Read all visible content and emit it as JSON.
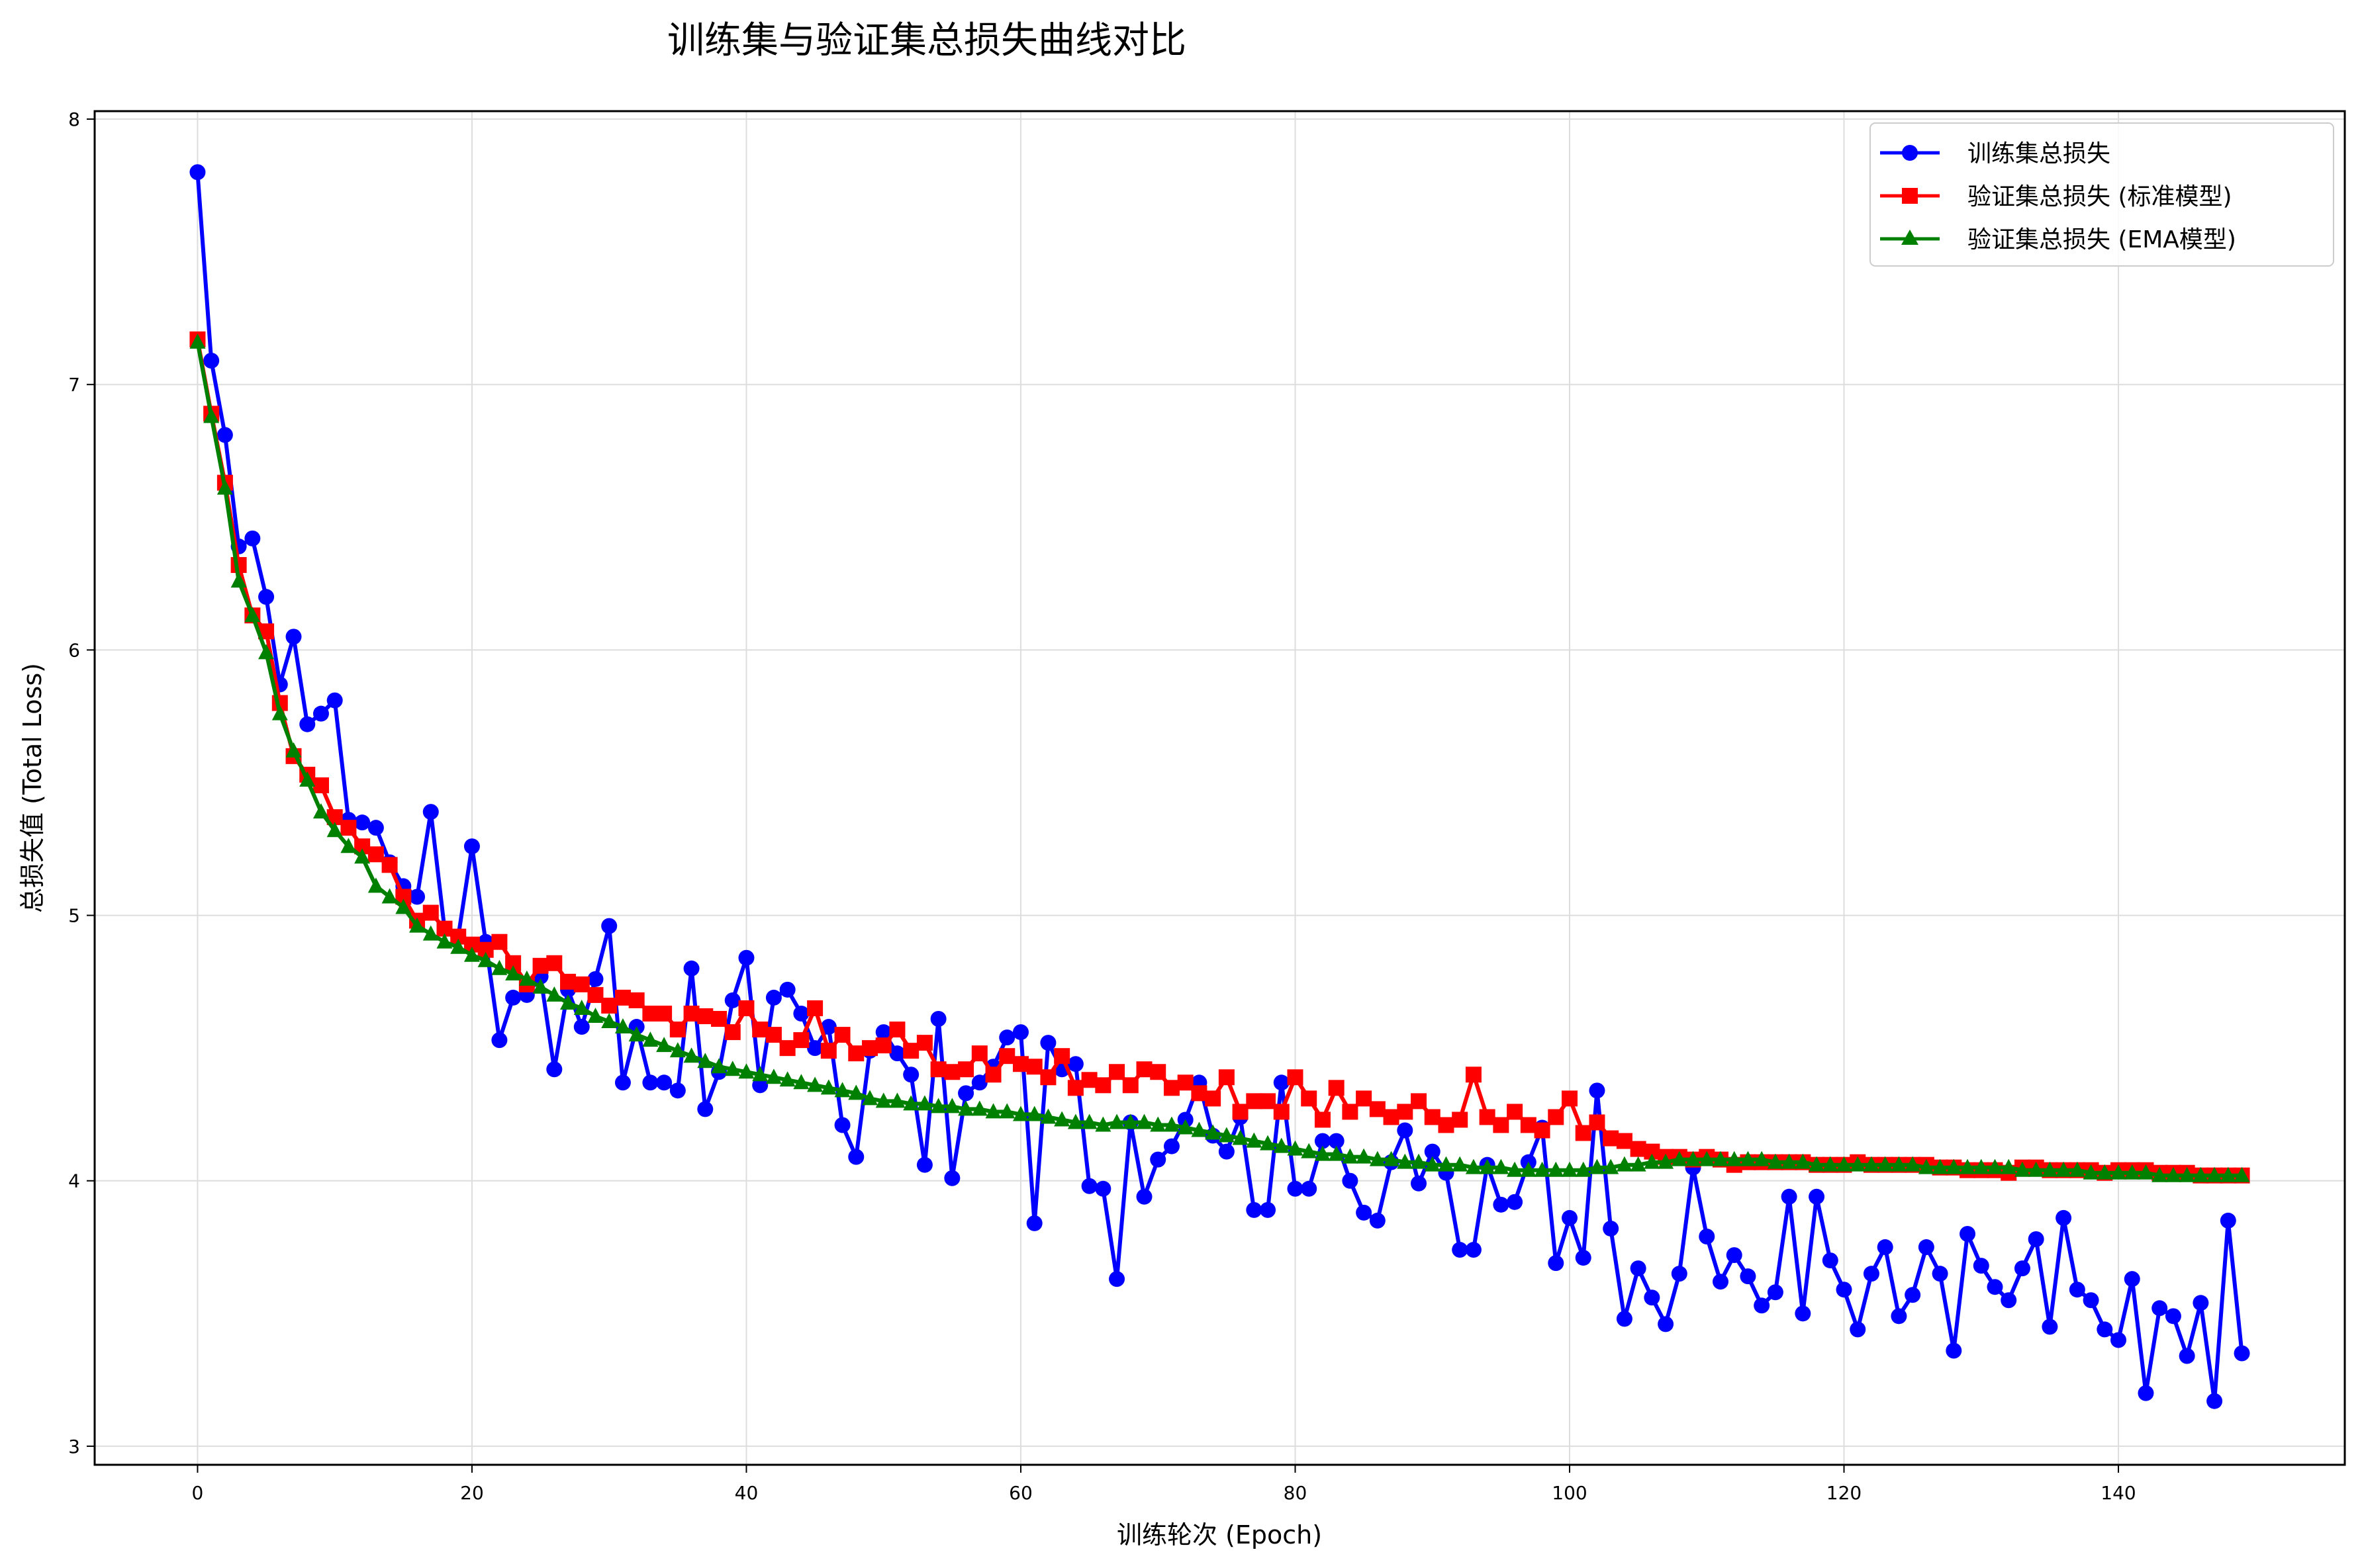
{
  "chart_data": {
    "type": "line",
    "title": "训练集与验证集总损失曲线对比",
    "xlabel": "训练轮次 (Epoch)",
    "ylabel": "总损失值 (Total Loss)",
    "xlim": [
      -7.5,
      156.5
    ],
    "ylim": [
      2.93,
      8.03
    ],
    "xticks": [
      0,
      20,
      40,
      60,
      80,
      100,
      120,
      140
    ],
    "yticks": [
      3,
      4,
      5,
      6,
      7,
      8
    ],
    "grid": true,
    "legend_position": "top-right",
    "series": [
      {
        "name": "训练集总损失",
        "color": "#0000ff",
        "marker": "circle",
        "values": [
          7.8,
          7.09,
          6.81,
          6.39,
          6.42,
          6.2,
          5.87,
          6.05,
          5.72,
          5.76,
          5.81,
          5.36,
          5.35,
          5.33,
          5.2,
          5.11,
          5.07,
          5.39,
          4.95,
          4.92,
          5.26,
          4.9,
          4.53,
          4.69,
          4.7,
          4.77,
          4.42,
          4.72,
          4.58,
          4.76,
          4.96,
          4.37,
          4.58,
          4.37,
          4.37,
          4.34,
          4.8,
          4.27,
          4.41,
          4.68,
          4.84,
          4.36,
          4.69,
          4.72,
          4.63,
          4.5,
          4.58,
          4.21,
          4.09,
          4.49,
          4.56,
          4.48,
          4.4,
          4.06,
          4.61,
          4.01,
          4.33,
          4.37,
          4.43,
          4.54,
          4.56,
          3.84,
          4.52,
          4.42,
          4.44,
          3.98,
          3.97,
          3.63,
          4.22,
          3.94,
          4.08,
          4.13,
          4.23,
          4.37,
          4.17,
          4.11,
          4.24,
          3.89,
          3.89,
          4.37,
          3.97,
          3.97,
          4.15,
          4.15,
          4.0,
          3.88,
          3.85,
          4.07,
          4.19,
          3.99,
          4.11,
          4.03,
          3.74,
          3.74,
          4.06,
          3.91,
          3.92,
          4.07,
          4.2,
          3.69,
          3.86,
          3.71,
          4.34,
          3.82,
          3.48,
          3.67,
          3.56,
          3.46,
          3.65,
          4.05,
          3.79,
          3.62,
          3.72,
          3.64,
          3.53,
          3.58,
          3.94,
          3.5,
          3.94,
          3.7,
          3.59,
          3.44,
          3.65,
          3.75,
          3.49,
          3.57,
          3.75,
          3.65,
          3.36,
          3.8,
          3.68,
          3.6,
          3.55,
          3.67,
          3.78,
          3.45,
          3.86,
          3.59,
          3.55,
          3.44,
          3.4,
          3.63,
          3.2,
          3.52,
          3.49,
          3.34,
          3.54,
          3.17,
          3.85,
          3.35
        ]
      },
      {
        "name": "验证集总损失 (标准模型)",
        "color": "#ff0000",
        "marker": "square",
        "values": [
          7.17,
          6.89,
          6.63,
          6.32,
          6.13,
          6.07,
          5.8,
          5.6,
          5.53,
          5.49,
          5.37,
          5.33,
          5.26,
          5.23,
          5.19,
          5.07,
          4.98,
          5.01,
          4.95,
          4.92,
          4.89,
          4.87,
          4.9,
          4.82,
          4.74,
          4.81,
          4.82,
          4.75,
          4.74,
          4.7,
          4.66,
          4.69,
          4.68,
          4.63,
          4.63,
          4.57,
          4.63,
          4.62,
          4.61,
          4.56,
          4.65,
          4.57,
          4.55,
          4.5,
          4.53,
          4.65,
          4.49,
          4.55,
          4.48,
          4.5,
          4.51,
          4.57,
          4.49,
          4.52,
          4.42,
          4.41,
          4.42,
          4.48,
          4.4,
          4.47,
          4.44,
          4.43,
          4.39,
          4.47,
          4.35,
          4.38,
          4.36,
          4.41,
          4.36,
          4.42,
          4.41,
          4.35,
          4.37,
          4.33,
          4.31,
          4.39,
          4.26,
          4.3,
          4.3,
          4.26,
          4.39,
          4.31,
          4.23,
          4.35,
          4.26,
          4.31,
          4.27,
          4.24,
          4.26,
          4.3,
          4.24,
          4.21,
          4.23,
          4.4,
          4.24,
          4.21,
          4.26,
          4.21,
          4.19,
          4.24,
          4.31,
          4.18,
          4.22,
          4.16,
          4.15,
          4.12,
          4.11,
          4.09,
          4.09,
          4.08,
          4.09,
          4.08,
          4.06,
          4.07,
          4.07,
          4.07,
          4.07,
          4.07,
          4.06,
          4.06,
          4.06,
          4.07,
          4.06,
          4.06,
          4.06,
          4.06,
          4.06,
          4.05,
          4.05,
          4.04,
          4.04,
          4.04,
          4.03,
          4.05,
          4.05,
          4.04,
          4.04,
          4.04,
          4.04,
          4.03,
          4.04,
          4.04,
          4.04,
          4.03,
          4.03,
          4.03,
          4.02,
          4.02,
          4.02,
          4.02
        ]
      },
      {
        "name": "验证集总损失 (EMA模型)",
        "color": "#008000",
        "marker": "triangle",
        "values": [
          7.16,
          6.88,
          6.61,
          6.26,
          6.13,
          5.99,
          5.76,
          5.62,
          5.51,
          5.39,
          5.32,
          5.26,
          5.22,
          5.11,
          5.07,
          5.03,
          4.96,
          4.93,
          4.9,
          4.88,
          4.85,
          4.83,
          4.8,
          4.78,
          4.76,
          4.73,
          4.7,
          4.67,
          4.65,
          4.62,
          4.6,
          4.58,
          4.55,
          4.53,
          4.51,
          4.49,
          4.47,
          4.45,
          4.43,
          4.42,
          4.41,
          4.4,
          4.39,
          4.38,
          4.37,
          4.36,
          4.35,
          4.34,
          4.33,
          4.31,
          4.3,
          4.3,
          4.29,
          4.29,
          4.28,
          4.28,
          4.27,
          4.27,
          4.26,
          4.26,
          4.25,
          4.25,
          4.24,
          4.23,
          4.22,
          4.22,
          4.21,
          4.22,
          4.22,
          4.22,
          4.21,
          4.21,
          4.2,
          4.19,
          4.18,
          4.17,
          4.16,
          4.15,
          4.14,
          4.13,
          4.12,
          4.11,
          4.1,
          4.1,
          4.09,
          4.09,
          4.08,
          4.08,
          4.07,
          4.07,
          4.06,
          4.06,
          4.06,
          4.05,
          4.05,
          4.05,
          4.04,
          4.04,
          4.04,
          4.04,
          4.04,
          4.04,
          4.05,
          4.05,
          4.06,
          4.06,
          4.07,
          4.07,
          4.08,
          4.08,
          4.08,
          4.08,
          4.08,
          4.08,
          4.08,
          4.07,
          4.07,
          4.07,
          4.06,
          4.06,
          4.06,
          4.06,
          4.06,
          4.06,
          4.06,
          4.06,
          4.05,
          4.05,
          4.05,
          4.05,
          4.05,
          4.05,
          4.05,
          4.04,
          4.04,
          4.04,
          4.04,
          4.04,
          4.03,
          4.03,
          4.03,
          4.03,
          4.03,
          4.02,
          4.02,
          4.02,
          4.02,
          4.02,
          4.02,
          4.02
        ]
      }
    ]
  }
}
